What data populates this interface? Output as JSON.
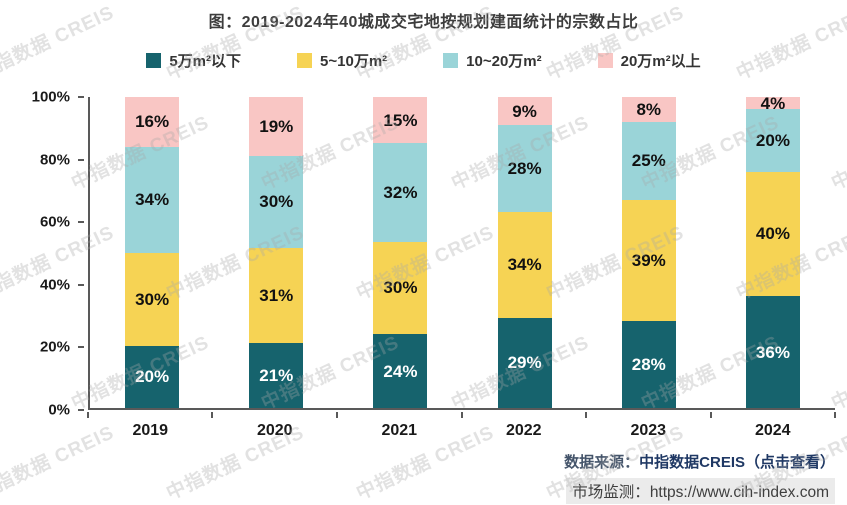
{
  "title": "图：2019-2024年40城成交宅地按规划建面统计的宗数占比",
  "watermark_text": "中指数据 CREIS",
  "colors": {
    "title": "#3d3d3d",
    "axis": "#595959",
    "link": "#1f3864",
    "source_prefix": "#44546a",
    "monitor_text": "#3f3f3f",
    "monitor_bg": "#ebebeb",
    "watermark": "#a8a8a8"
  },
  "chart_data": {
    "type": "bar",
    "stacked": true,
    "percent": true,
    "grid": false,
    "legend_position": "top",
    "title": "图：2019-2024年40城成交宅地按规划建面统计的宗数占比",
    "xlabel": "",
    "ylabel": "",
    "ylim": [
      0,
      100
    ],
    "yticks": [
      "0%",
      "20%",
      "40%",
      "60%",
      "80%",
      "100%"
    ],
    "categories": [
      "2019",
      "2020",
      "2021",
      "2022",
      "2023",
      "2024"
    ],
    "series": [
      {
        "name": "5万m²以下",
        "color": "#16636D",
        "label_color": "#ffffff",
        "values": [
          20,
          21,
          24,
          29,
          28,
          36
        ]
      },
      {
        "name": "5~10万m²",
        "color": "#F6D354",
        "label_color": "#111111",
        "values": [
          30,
          31,
          30,
          34,
          39,
          40
        ]
      },
      {
        "name": "10~20万m²",
        "color": "#9AD4D8",
        "label_color": "#111111",
        "values": [
          34,
          30,
          32,
          28,
          25,
          20
        ]
      },
      {
        "name": "20万m²以上",
        "color": "#F9C6C4",
        "label_color": "#111111",
        "values": [
          16,
          19,
          15,
          9,
          8,
          4
        ]
      }
    ],
    "value_suffix": "%"
  },
  "source": {
    "prefix": "数据来源：",
    "link": "中指数据CREIS（点击查看）",
    "monitor_prefix": "市场监测：",
    "monitor_url": "https://www.cih-index.com"
  }
}
